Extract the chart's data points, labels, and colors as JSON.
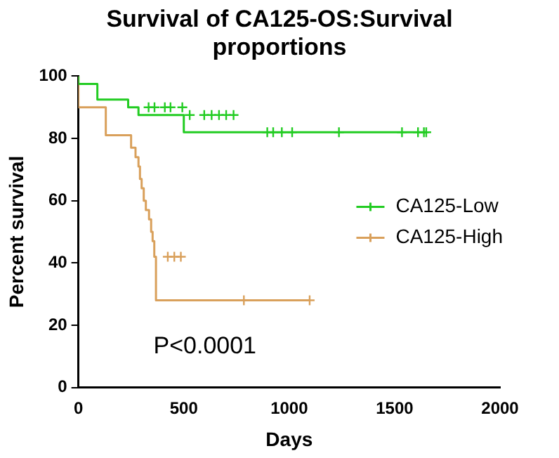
{
  "chart_data": {
    "type": "step",
    "title": "Survival of CA125-OS:Survival proportions",
    "xlabel": "Days",
    "ylabel": "Percent survival",
    "xlim": [
      0,
      2000
    ],
    "xticks": [
      0,
      500,
      1000,
      1500,
      2000
    ],
    "ylim": [
      0,
      100
    ],
    "yticks": [
      0,
      20,
      40,
      60,
      80,
      100
    ],
    "grid": false,
    "legend": "right",
    "marker": "none",
    "annotations": [
      "P<0.0001"
    ],
    "series": [
      {
        "name": "CA125-Low",
        "color": "#22cc22",
        "x": [
          0,
          90,
          236,
          285,
          500,
          757,
          1650
        ],
        "values": [
          100,
          97.5,
          92.5,
          90,
          87.5,
          82,
          82
        ]
      },
      {
        "name": "CA125-High",
        "color": "#d9a05b",
        "x": [
          0,
          130,
          250,
          271,
          285,
          292,
          300,
          310,
          320,
          335,
          345,
          352,
          360,
          368,
          528,
          1097
        ],
        "values": [
          100,
          90,
          81,
          77,
          74,
          71,
          67,
          64,
          60,
          57,
          54,
          50,
          47,
          42,
          28,
          28
        ]
      },
      {
        "type": "scatter",
        "marker": "cross",
        "color": "#22cc22",
        "x": [
          333,
          361,
          410,
          437,
          493,
          528,
          597,
          632,
          667,
          701,
          736,
          896,
          924,
          965,
          1014,
          1236,
          1535,
          1611,
          1639,
          1650
        ],
        "values": [
          90,
          90,
          90,
          90,
          90,
          87.5,
          87.5,
          87.5,
          87.5,
          87.5,
          87.5,
          82,
          82,
          82,
          82,
          82,
          82,
          82,
          82,
          82
        ]
      },
      {
        "type": "scatter",
        "marker": "cross",
        "color": "#d9a05b",
        "x": [
          424,
          455,
          486,
          785,
          1097
        ],
        "values": [
          42,
          42,
          42,
          28,
          28
        ]
      }
    ]
  }
}
